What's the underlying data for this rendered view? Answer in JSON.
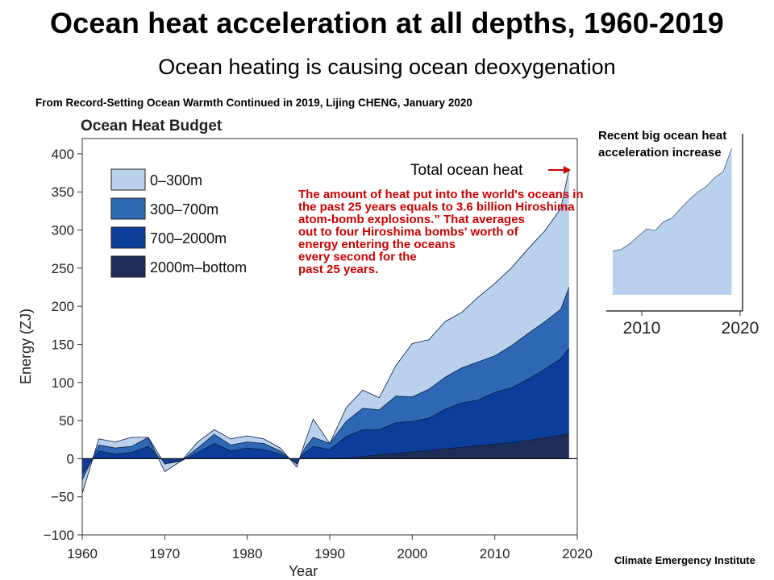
{
  "slide": {
    "title": "Ocean heat acceleration at all depths, 1960-2019",
    "subtitle": "Ocean heating is causing ocean deoxygenation",
    "source": "From Record-Setting Ocean Warmth Continued in 2019, Lijing CHENG, January 2020",
    "inset_caption": "Recent big ocean heat acceleration increase",
    "credit": "Climate Emergency Institute",
    "total_label": "Total ocean  heat",
    "callout_lines": [
      "The amount of heat put into the world's oceans in",
      "the past 25 years equals to 3.6  billion Hiroshima",
      "atom-bomb explosions.” That averages",
      "out to four Hiroshima bombs' worth of",
      "energy entering the oceans",
      "every second for the",
      "past 25  years."
    ]
  },
  "colors": {
    "layer_0_300": "#b9d1ec",
    "layer_300_700": "#2e68b4",
    "layer_700_2000": "#0c3d9a",
    "layer_2000_bottom": "#1c2d58",
    "callout": "#cc0000"
  },
  "chart_data": [
    {
      "type": "area",
      "title": "Ocean Heat Budget",
      "xlabel": "Year",
      "ylabel": "Energy (ZJ)",
      "xlim": [
        1960,
        2020
      ],
      "ylim": [
        -100,
        420
      ],
      "x_ticks": [
        1960,
        1970,
        1980,
        1990,
        2000,
        2010,
        2020
      ],
      "y_ticks": [
        -100,
        -50,
        0,
        50,
        100,
        150,
        200,
        250,
        300,
        350,
        400
      ],
      "stacked": true,
      "legend_position": "top-left",
      "x": [
        1960,
        1962,
        1964,
        1966,
        1968,
        1970,
        1972,
        1974,
        1976,
        1978,
        1980,
        1982,
        1984,
        1986,
        1987,
        1988,
        1990,
        1992,
        1994,
        1996,
        1998,
        2000,
        2002,
        2004,
        2006,
        2008,
        2010,
        2012,
        2014,
        2016,
        2018,
        2019
      ],
      "series": [
        {
          "name": "2000m–bottom",
          "values": [
            0,
            0,
            0,
            0,
            0,
            0,
            0,
            0,
            0,
            0,
            0,
            0,
            0,
            0,
            0,
            0,
            0,
            1,
            3,
            5,
            7,
            9,
            11,
            13,
            15,
            17,
            19,
            21,
            24,
            27,
            31,
            33
          ]
        },
        {
          "name": "700–2000m",
          "values": [
            -20,
            10,
            6,
            8,
            16,
            -5,
            -3,
            8,
            20,
            10,
            14,
            12,
            6,
            -5,
            8,
            16,
            12,
            28,
            35,
            33,
            40,
            40,
            42,
            52,
            58,
            60,
            68,
            72,
            80,
            90,
            100,
            112
          ]
        },
        {
          "name": "300–700m",
          "values": [
            -8,
            8,
            8,
            8,
            12,
            -2,
            0,
            6,
            12,
            8,
            8,
            8,
            4,
            -2,
            6,
            12,
            8,
            20,
            28,
            26,
            35,
            32,
            38,
            42,
            46,
            50,
            48,
            55,
            60,
            62,
            65,
            80
          ]
        },
        {
          "name": "0–300m",
          "values": [
            -18,
            8,
            8,
            12,
            0,
            -10,
            0,
            8,
            6,
            8,
            8,
            6,
            4,
            -4,
            8,
            24,
            0,
            18,
            24,
            16,
            40,
            70,
            65,
            73,
            73,
            85,
            95,
            102,
            111,
            119,
            132,
            155
          ]
        }
      ],
      "annotations": [
        "Total ocean  heat"
      ]
    },
    {
      "type": "area",
      "title": "",
      "xlim": [
        2005,
        2020
      ],
      "x_ticks": [
        2010,
        2020
      ],
      "x": [
        2005,
        2006,
        2007,
        2008,
        2009,
        2010,
        2011,
        2012,
        2013,
        2014,
        2015,
        2016,
        2017,
        2018,
        2019
      ],
      "series": [
        {
          "name": "0–300m",
          "values": [
            260,
            262,
            270,
            280,
            290,
            288,
            300,
            305,
            318,
            330,
            340,
            348,
            360,
            368,
            400
          ]
        }
      ]
    }
  ]
}
